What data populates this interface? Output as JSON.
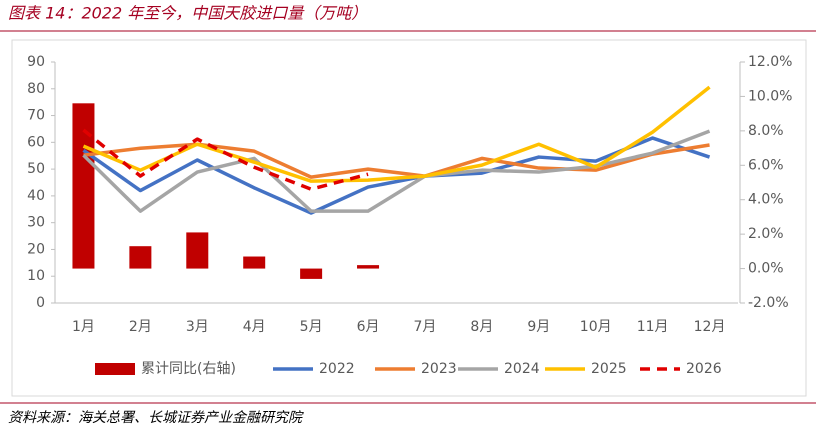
{
  "title": "图表 14：2022 年至今，中国天胶进口量（万吨）",
  "source": "资料来源：海关总署、长城证券产业金融研究院",
  "chart_data": {
    "type": "combo",
    "categories": [
      "1月",
      "2月",
      "3月",
      "4月",
      "5月",
      "6月",
      "7月",
      "8月",
      "9月",
      "10月",
      "11月",
      "12月"
    ],
    "ylim": [
      0,
      90
    ],
    "yticks": [
      0,
      10,
      20,
      30,
      40,
      50,
      60,
      70,
      80,
      90
    ],
    "y2lim": [
      -2,
      12
    ],
    "y2ticks": [
      {
        "value": -2,
        "label": "-2.0%"
      },
      {
        "value": 0,
        "label": "0.0%"
      },
      {
        "value": 2,
        "label": "2.0%"
      },
      {
        "value": 4,
        "label": "4.0%"
      },
      {
        "value": 6,
        "label": "6.0%"
      },
      {
        "value": 8,
        "label": "8.0%"
      },
      {
        "value": 10,
        "label": "10.0%"
      },
      {
        "value": 12,
        "label": "12.0%"
      }
    ],
    "series": [
      {
        "name": "累计同比(右轴)",
        "type": "bar",
        "axis": "y2",
        "color": "#c00000",
        "values": [
          9.6,
          1.3,
          2.1,
          0.7,
          -0.6,
          0.2,
          null,
          null,
          null,
          null,
          null,
          null
        ]
      },
      {
        "name": "2022",
        "type": "line",
        "color": "#4472c4",
        "values": [
          57,
          42,
          53.4,
          43,
          33.6,
          43.3,
          47.4,
          48.5,
          54.5,
          53,
          61.6,
          54.5
        ]
      },
      {
        "name": "2023",
        "type": "line",
        "color": "#ed7d31",
        "values": [
          55.2,
          57.8,
          59.3,
          56.7,
          47,
          50,
          47.4,
          54,
          50.4,
          49.6,
          55.6,
          59
        ]
      },
      {
        "name": "2024",
        "type": "line",
        "color": "#a5a5a5",
        "values": [
          55.2,
          34.3,
          48.9,
          54,
          34.3,
          34.3,
          47.4,
          49.6,
          48.9,
          51.1,
          56,
          64.2
        ]
      },
      {
        "name": "2025",
        "type": "line",
        "color": "#ffc000",
        "values": [
          58.6,
          49.6,
          59.3,
          52.6,
          45.5,
          45.9,
          47.4,
          51.5,
          59.3,
          50.7,
          63.8,
          80.6
        ]
      },
      {
        "name": "2026",
        "type": "line",
        "dash": true,
        "color": "#e00000",
        "values": [
          64.6,
          47.4,
          61.2,
          50.7,
          42.5,
          48.1,
          null,
          null,
          null,
          null,
          null,
          null
        ]
      }
    ]
  }
}
